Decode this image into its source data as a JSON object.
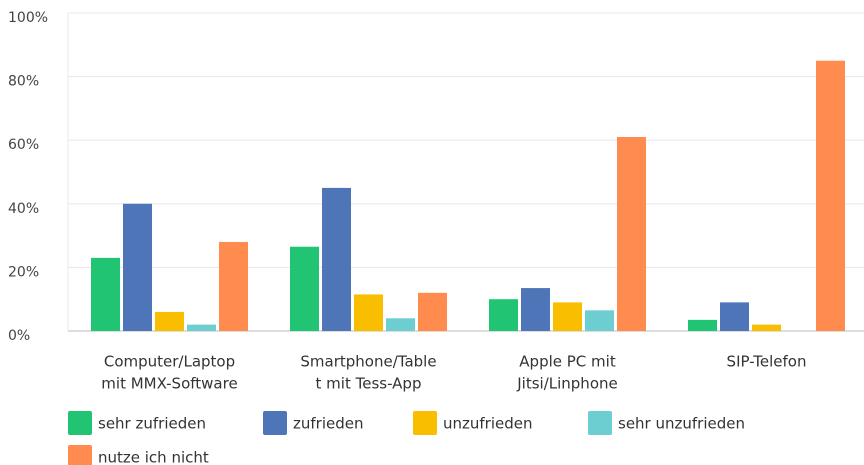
{
  "chart_data": {
    "type": "bar",
    "categories": [
      [
        "Computer/Laptop",
        "mit MMX-Software"
      ],
      [
        "Smartphone/Table",
        "t mit Tess-App"
      ],
      [
        "Apple PC mit",
        "Jitsi/Linphone"
      ],
      [
        "SIP-Telefon"
      ]
    ],
    "series": [
      {
        "name": "sehr zufrieden",
        "color": "#20c472",
        "values": [
          23,
          26.5,
          10,
          3.5
        ]
      },
      {
        "name": "zufrieden",
        "color": "#4e75b8",
        "values": [
          40,
          45,
          13.5,
          9
        ]
      },
      {
        "name": "unzufrieden",
        "color": "#f9be00",
        "values": [
          6,
          11.5,
          9,
          2
        ]
      },
      {
        "name": "sehr unzufrieden",
        "color": "#6dced2",
        "values": [
          2,
          4,
          6.5,
          0
        ]
      },
      {
        "name": "nutze ich nicht",
        "color": "#ff8b4f",
        "values": [
          28,
          12,
          61,
          85
        ]
      }
    ],
    "ylim": [
      0,
      100
    ],
    "yticks": [
      {
        "value": 0,
        "label": "0%"
      },
      {
        "value": 20,
        "label": "20%"
      },
      {
        "value": 40,
        "label": "40%"
      },
      {
        "value": 60,
        "label": "60%"
      },
      {
        "value": 80,
        "label": "80%"
      },
      {
        "value": 100,
        "label": "100%"
      }
    ],
    "grid": true
  }
}
